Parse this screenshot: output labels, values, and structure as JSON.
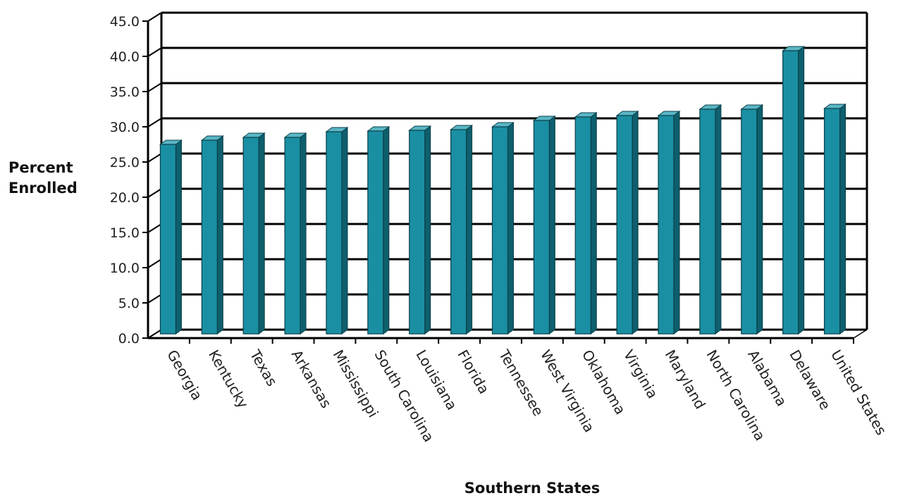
{
  "chart_data": {
    "type": "bar",
    "title": "",
    "xlabel": "Southern States",
    "ylabel_lines": [
      "Percent",
      "Enrolled"
    ],
    "ylim": [
      0,
      45
    ],
    "ytick_step": 5,
    "ytick_labels": [
      "0.0",
      "5.0",
      "10.0",
      "15.0",
      "20.0",
      "25.0",
      "30.0",
      "35.0",
      "40.0",
      "45.0"
    ],
    "grid": true,
    "bar_color": "#1a8fa3",
    "categories": [
      "Georgia",
      "Kentucky",
      "Texas",
      "Arkansas",
      "Mississippi",
      "South Carolina",
      "Louisiana",
      "Florida",
      "Tennessee",
      "West Virginia",
      "Oklahoma",
      "Virginia",
      "Maryland",
      "North Carolina",
      "Alabama",
      "Delaware",
      "United States"
    ],
    "values": [
      26.9,
      27.5,
      27.9,
      27.9,
      28.7,
      28.8,
      28.9,
      29.0,
      29.4,
      30.3,
      30.8,
      31.0,
      31.0,
      31.9,
      31.9,
      40.2,
      32.0
    ]
  }
}
